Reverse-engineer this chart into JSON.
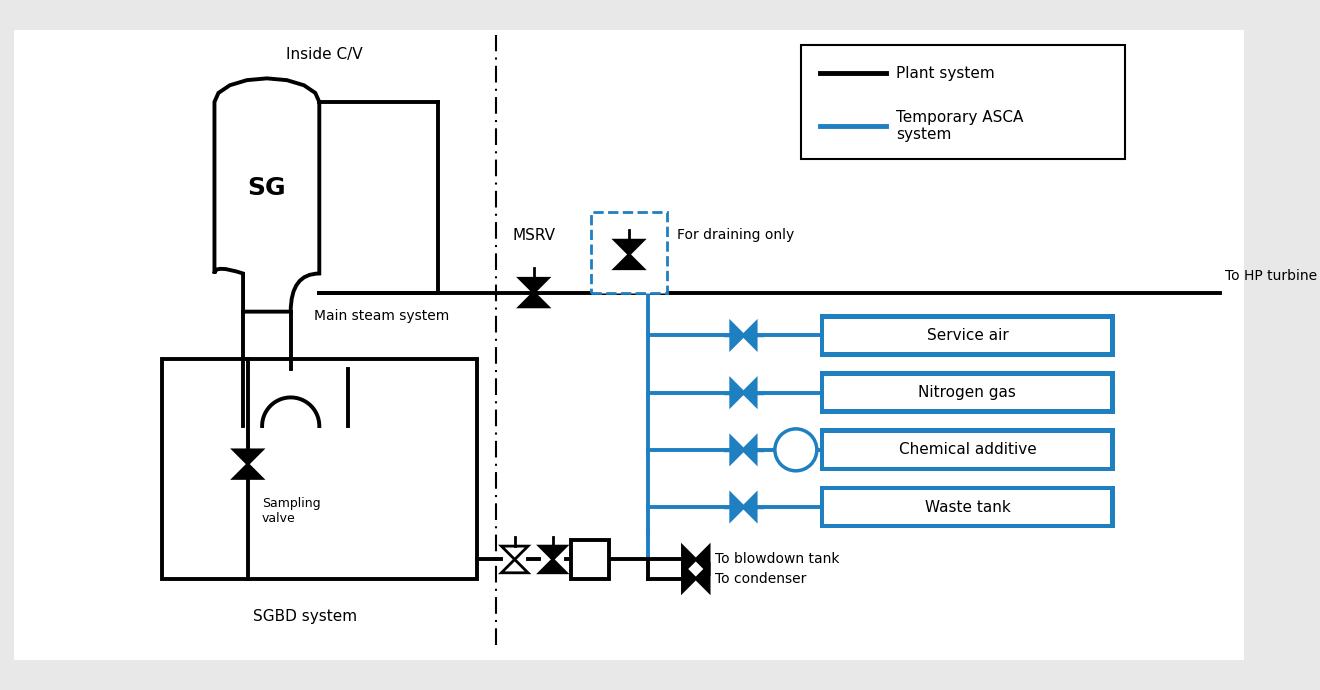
{
  "bg_color": "#e8e8e8",
  "diagram_bg": "#ffffff",
  "black": "#000000",
  "blue": "#1e7fc1",
  "lw_main": 2.8,
  "lw_blue": 2.8,
  "box_labels": [
    "Service air",
    "Nitrogen gas",
    "Chemical additive",
    "Waste tank"
  ],
  "legend_line1": "Plant system",
  "legend_line2": "Temporary ASCA\nsystem",
  "label_inside_cv": "Inside C/V",
  "label_msrv": "MSRV",
  "label_draining": "For draining only",
  "label_hp": "To HP turbine",
  "label_main_steam": "Main steam system",
  "label_sg": "SG",
  "label_sampling": "Sampling\nvalve",
  "label_sgbd": "SGBD system",
  "label_blowdown": "To blowdown tank",
  "label_condenser": "To condenser"
}
